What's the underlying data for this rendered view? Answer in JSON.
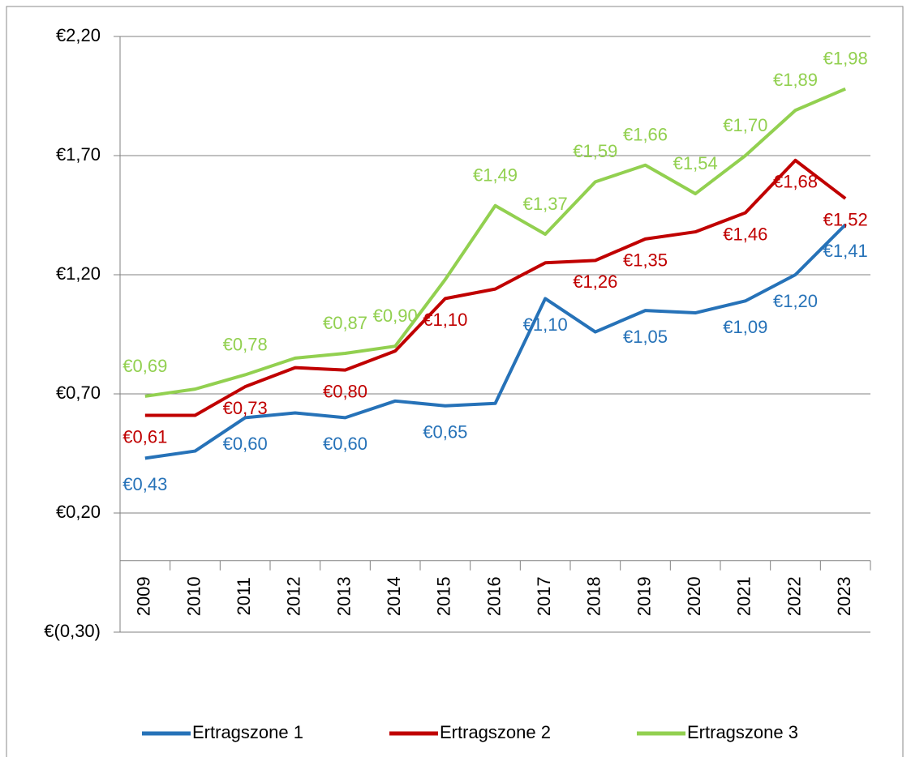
{
  "chart_data": {
    "type": "line",
    "categories": [
      "2009",
      "2010",
      "2011",
      "2012",
      "2013",
      "2014",
      "2015",
      "2016",
      "2017",
      "2018",
      "2019",
      "2020",
      "2021",
      "2022",
      "2023"
    ],
    "series": [
      {
        "name": "Ertragszone 1",
        "color": "#2672b8",
        "values": [
          0.43,
          0.46,
          0.6,
          0.62,
          0.6,
          0.67,
          0.65,
          0.66,
          1.1,
          0.96,
          1.05,
          1.04,
          1.09,
          1.2,
          1.41
        ],
        "value_labels": [
          "€0,43",
          null,
          "€0,60",
          null,
          "€0,60",
          null,
          "€0,65",
          null,
          "€1,10",
          null,
          "€1,05",
          null,
          "€1,09",
          "€1,20",
          "€1,41"
        ]
      },
      {
        "name": "Ertragszone 2",
        "color": "#c00000",
        "values": [
          0.61,
          0.61,
          0.73,
          0.81,
          0.8,
          0.88,
          1.1,
          1.14,
          1.25,
          1.26,
          1.35,
          1.38,
          1.46,
          1.68,
          1.52
        ],
        "value_labels": [
          "€0,61",
          null,
          "€0,73",
          null,
          "€0,80",
          null,
          "€1,10",
          null,
          null,
          "€1,26",
          "€1,35",
          null,
          "€1,46",
          "€1,68",
          "€1,52"
        ]
      },
      {
        "name": "Ertragszone 3",
        "color": "#92d050",
        "values": [
          0.69,
          0.72,
          0.78,
          0.85,
          0.87,
          0.9,
          1.18,
          1.49,
          1.37,
          1.59,
          1.66,
          1.54,
          1.7,
          1.89,
          1.98
        ],
        "value_labels": [
          "€0,69",
          null,
          "€0,78",
          null,
          "€0,87",
          "€0,90",
          null,
          "€1,49",
          "€1,37",
          "€1,59",
          "€1,66",
          "€1,54",
          "€1,70",
          "€1,89",
          "€1,98"
        ]
      }
    ],
    "ylim": [
      -0.3,
      2.2
    ],
    "yticks": [
      {
        "value": -0.3,
        "label": "€(0,30)"
      },
      {
        "value": 0.2,
        "label": "€0,20"
      },
      {
        "value": 0.7,
        "label": "€0,70"
      },
      {
        "value": 1.2,
        "label": "€1,20"
      },
      {
        "value": 1.7,
        "label": "€1,70"
      },
      {
        "value": 2.2,
        "label": "€2,20"
      }
    ],
    "grid": true,
    "legend": "bottom"
  }
}
